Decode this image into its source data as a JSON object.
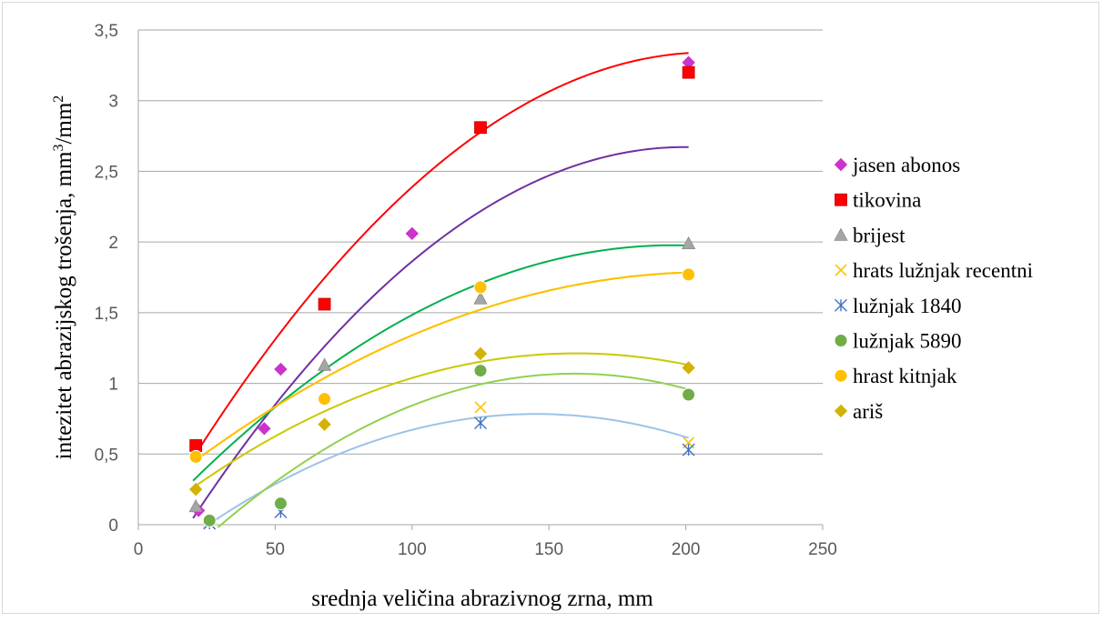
{
  "chart_data": {
    "type": "scatter",
    "xlabel": "srednja veličina abrazivnog zrna, mm",
    "ylabel_main": "intezitet abrazijskog trošenja, mm",
    "ylabel_sup1": "3",
    "ylabel_mid": "/mm",
    "ylabel_sup2": "2",
    "xlim": [
      0,
      250
    ],
    "ylim": [
      0,
      3.5
    ],
    "x_ticks": [
      "0",
      "50",
      "100",
      "150",
      "200",
      "250"
    ],
    "y_ticks": [
      "0",
      "0,5",
      "1",
      "1,5",
      "2",
      "2,5",
      "3",
      "3,5"
    ],
    "grid": "horizontal",
    "legend_position": "right",
    "series": [
      {
        "name": "jasen abonos",
        "marker": "diamond",
        "color": "#cc33cc",
        "trend_color": "#7030a0",
        "points": [
          [
            22,
            0.1
          ],
          [
            46,
            0.68
          ],
          [
            52,
            1.1
          ],
          [
            100,
            2.06
          ],
          [
            201,
            3.27
          ]
        ],
        "trend": [
          -8.12e-05,
          0.03245,
          -0.57
        ]
      },
      {
        "name": "tikovina",
        "marker": "square",
        "color": "#ff0000",
        "trend_color": "#ff0000",
        "points": [
          [
            21,
            0.56
          ],
          [
            68,
            1.56
          ],
          [
            125,
            2.81
          ],
          [
            201,
            3.2
          ]
        ],
        "trend": [
          -8.06e-05,
          0.03365,
          -0.17
        ]
      },
      {
        "name": "brijest",
        "marker": "triangle",
        "color": "#a5a5a5",
        "trend_color": "#00b050",
        "points": [
          [
            21,
            0.13
          ],
          [
            68,
            1.13
          ],
          [
            125,
            1.6
          ],
          [
            201,
            1.99
          ]
        ],
        "trend": [
          -5.41e-05,
          0.02115,
          -0.09
        ]
      },
      {
        "name": "hrats lužnjak recentni",
        "marker": "x",
        "color": "#ffc000",
        "trend_color": "#ffc000",
        "points": [
          [
            125,
            0.83
          ],
          [
            201,
            0.58
          ]
        ],
        "trend": [
          -3.78e-05,
          0.01578,
          0.14
        ]
      },
      {
        "name": "lužnjak 1840",
        "marker": "star",
        "color": "#4472c4",
        "trend_color": "#9dc3e6",
        "points": [
          [
            26,
            0.01
          ],
          [
            52,
            0.09
          ],
          [
            125,
            0.72
          ],
          [
            201,
            0.53
          ]
        ],
        "trend": [
          -5.46e-05,
          0.01587,
          -0.37
        ]
      },
      {
        "name": "lužnjak 5890",
        "marker": "circle",
        "color": "#70ad47",
        "trend_color": "#92d050",
        "points": [
          [
            26,
            0.03
          ],
          [
            52,
            0.15
          ],
          [
            125,
            1.09
          ],
          [
            201,
            0.92
          ]
        ],
        "trend": [
          -6.42e-05,
          0.02045,
          -0.56
        ]
      },
      {
        "name": "hrast kitnjak",
        "marker": "circle",
        "color": "#ffc000",
        "trend_color": "#ffc000",
        "points": [
          [
            21,
            0.48
          ],
          [
            68,
            0.89
          ],
          [
            125,
            1.68
          ],
          [
            201,
            1.77
          ]
        ],
        "trend": [
          -3.78e-05,
          0.01578,
          0.14
        ]
      },
      {
        "name": "ariš",
        "marker": "diamond",
        "color": "#d4b106",
        "trend_color": "#c9c900",
        "points": [
          [
            21,
            0.25
          ],
          [
            68,
            0.71
          ],
          [
            125,
            1.21
          ],
          [
            201,
            1.11
          ]
        ],
        "trend": [
          -4.86e-05,
          0.01554,
          -0.03
        ]
      }
    ]
  }
}
